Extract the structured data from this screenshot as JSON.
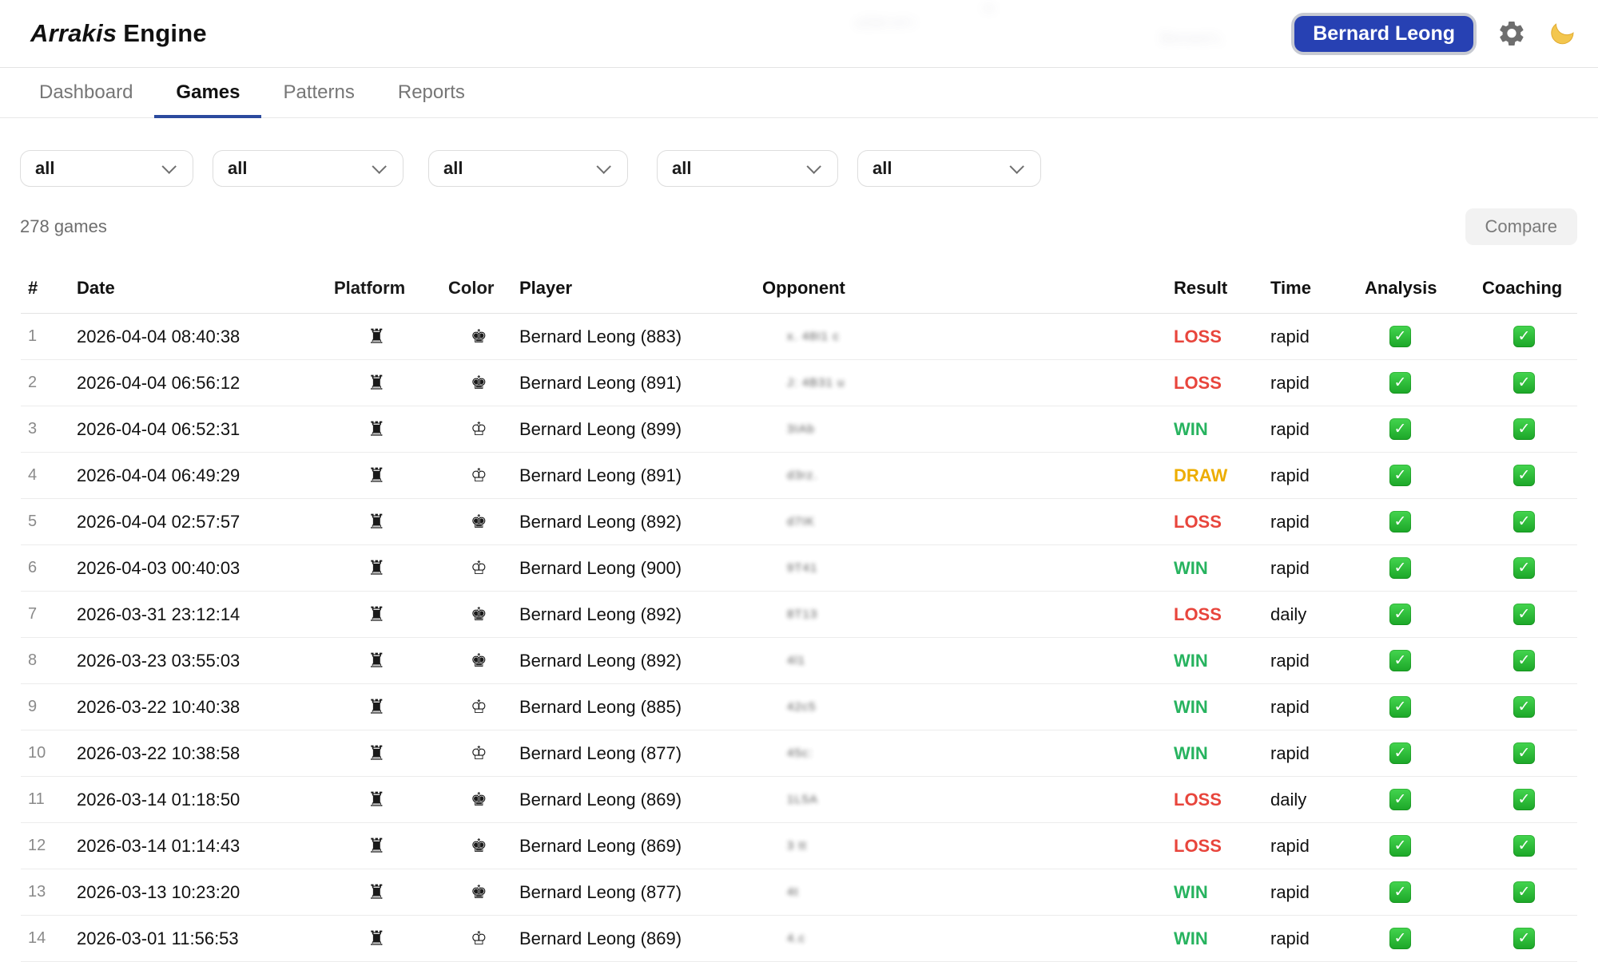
{
  "brand": {
    "name_italic": "Arrakis",
    "name_regular": "Engine"
  },
  "header": {
    "user_button_label": "Bernard Leong"
  },
  "nav_tabs": [
    {
      "label": "Dashboard",
      "active": false
    },
    {
      "label": "Games",
      "active": true
    },
    {
      "label": "Patterns",
      "active": false
    },
    {
      "label": "Reports",
      "active": false
    }
  ],
  "filters": [
    {
      "value": "all"
    },
    {
      "value": "all"
    },
    {
      "value": "all"
    },
    {
      "value": "all"
    },
    {
      "value": "all"
    }
  ],
  "summary": {
    "count_label": "278 games"
  },
  "actions": {
    "compare_label": "Compare"
  },
  "colors": {
    "accent_blue": "#2741b3",
    "tab_underline": "#2b4a9e",
    "win": "#27b35f",
    "loss": "#e8453c",
    "draw": "#edad00",
    "check_green": "#23b33a"
  },
  "table": {
    "headers": [
      "#",
      "Date",
      "Platform",
      "Color",
      "Player",
      "Opponent",
      "Result",
      "Time",
      "Analysis",
      "Coaching"
    ],
    "platform_icon": "chess-rook-icon",
    "rows": [
      {
        "num": "1",
        "date": "2026-04-04 08:40:38",
        "color": "black",
        "player": "Bernard Leong (883)",
        "opponent_blur": "x. 48I1 c",
        "result": "LOSS",
        "time": "rapid",
        "analysis": true,
        "coaching": true
      },
      {
        "num": "2",
        "date": "2026-04-04 06:56:12",
        "color": "black",
        "player": "Bernard Leong (891)",
        "opponent_blur": "J: 4B31 u",
        "result": "LOSS",
        "time": "rapid",
        "analysis": true,
        "coaching": true
      },
      {
        "num": "3",
        "date": "2026-04-04 06:52:31",
        "color": "white",
        "player": "Bernard Leong (899)",
        "opponent_blur": "3IAb",
        "result": "WIN",
        "time": "rapid",
        "analysis": true,
        "coaching": true
      },
      {
        "num": "4",
        "date": "2026-04-04 06:49:29",
        "color": "white",
        "player": "Bernard Leong (891)",
        "opponent_blur": "d3rz.",
        "result": "DRAW",
        "time": "rapid",
        "analysis": true,
        "coaching": true
      },
      {
        "num": "5",
        "date": "2026-04-04 02:57:57",
        "color": "black",
        "player": "Bernard Leong (892)",
        "opponent_blur": "d7IK",
        "result": "LOSS",
        "time": "rapid",
        "analysis": true,
        "coaching": true
      },
      {
        "num": "6",
        "date": "2026-04-03 00:40:03",
        "color": "white",
        "player": "Bernard Leong (900)",
        "opponent_blur": "9T41",
        "result": "WIN",
        "time": "rapid",
        "analysis": true,
        "coaching": true
      },
      {
        "num": "7",
        "date": "2026-03-31 23:12:14",
        "color": "black",
        "player": "Bernard Leong (892)",
        "opponent_blur": "8T13",
        "result": "LOSS",
        "time": "daily",
        "analysis": true,
        "coaching": true
      },
      {
        "num": "8",
        "date": "2026-03-23 03:55:03",
        "color": "black",
        "player": "Bernard Leong (892)",
        "opponent_blur": "4l1",
        "result": "WIN",
        "time": "rapid",
        "analysis": true,
        "coaching": true
      },
      {
        "num": "9",
        "date": "2026-03-22 10:40:38",
        "color": "white",
        "player": "Bernard Leong (885)",
        "opponent_blur": "42c5",
        "result": "WIN",
        "time": "rapid",
        "analysis": true,
        "coaching": true
      },
      {
        "num": "10",
        "date": "2026-03-22 10:38:58",
        "color": "white",
        "player": "Bernard Leong (877)",
        "opponent_blur": "45c:",
        "result": "WIN",
        "time": "rapid",
        "analysis": true,
        "coaching": true
      },
      {
        "num": "11",
        "date": "2026-03-14 01:18:50",
        "color": "black",
        "player": "Bernard Leong (869)",
        "opponent_blur": "1L5A",
        "result": "LOSS",
        "time": "daily",
        "analysis": true,
        "coaching": true
      },
      {
        "num": "12",
        "date": "2026-03-14 01:14:43",
        "color": "black",
        "player": "Bernard Leong (869)",
        "opponent_blur": "3 tt",
        "result": "LOSS",
        "time": "rapid",
        "analysis": true,
        "coaching": true
      },
      {
        "num": "13",
        "date": "2026-03-13 10:23:20",
        "color": "black",
        "player": "Bernard Leong (877)",
        "opponent_blur": "4t",
        "result": "WIN",
        "time": "rapid",
        "analysis": true,
        "coaching": true
      },
      {
        "num": "14",
        "date": "2026-03-01 11:56:53",
        "color": "white",
        "player": "Bernard Leong (869)",
        "opponent_blur": "4.c",
        "result": "WIN",
        "time": "rapid",
        "analysis": true,
        "coaching": true
      }
    ]
  }
}
